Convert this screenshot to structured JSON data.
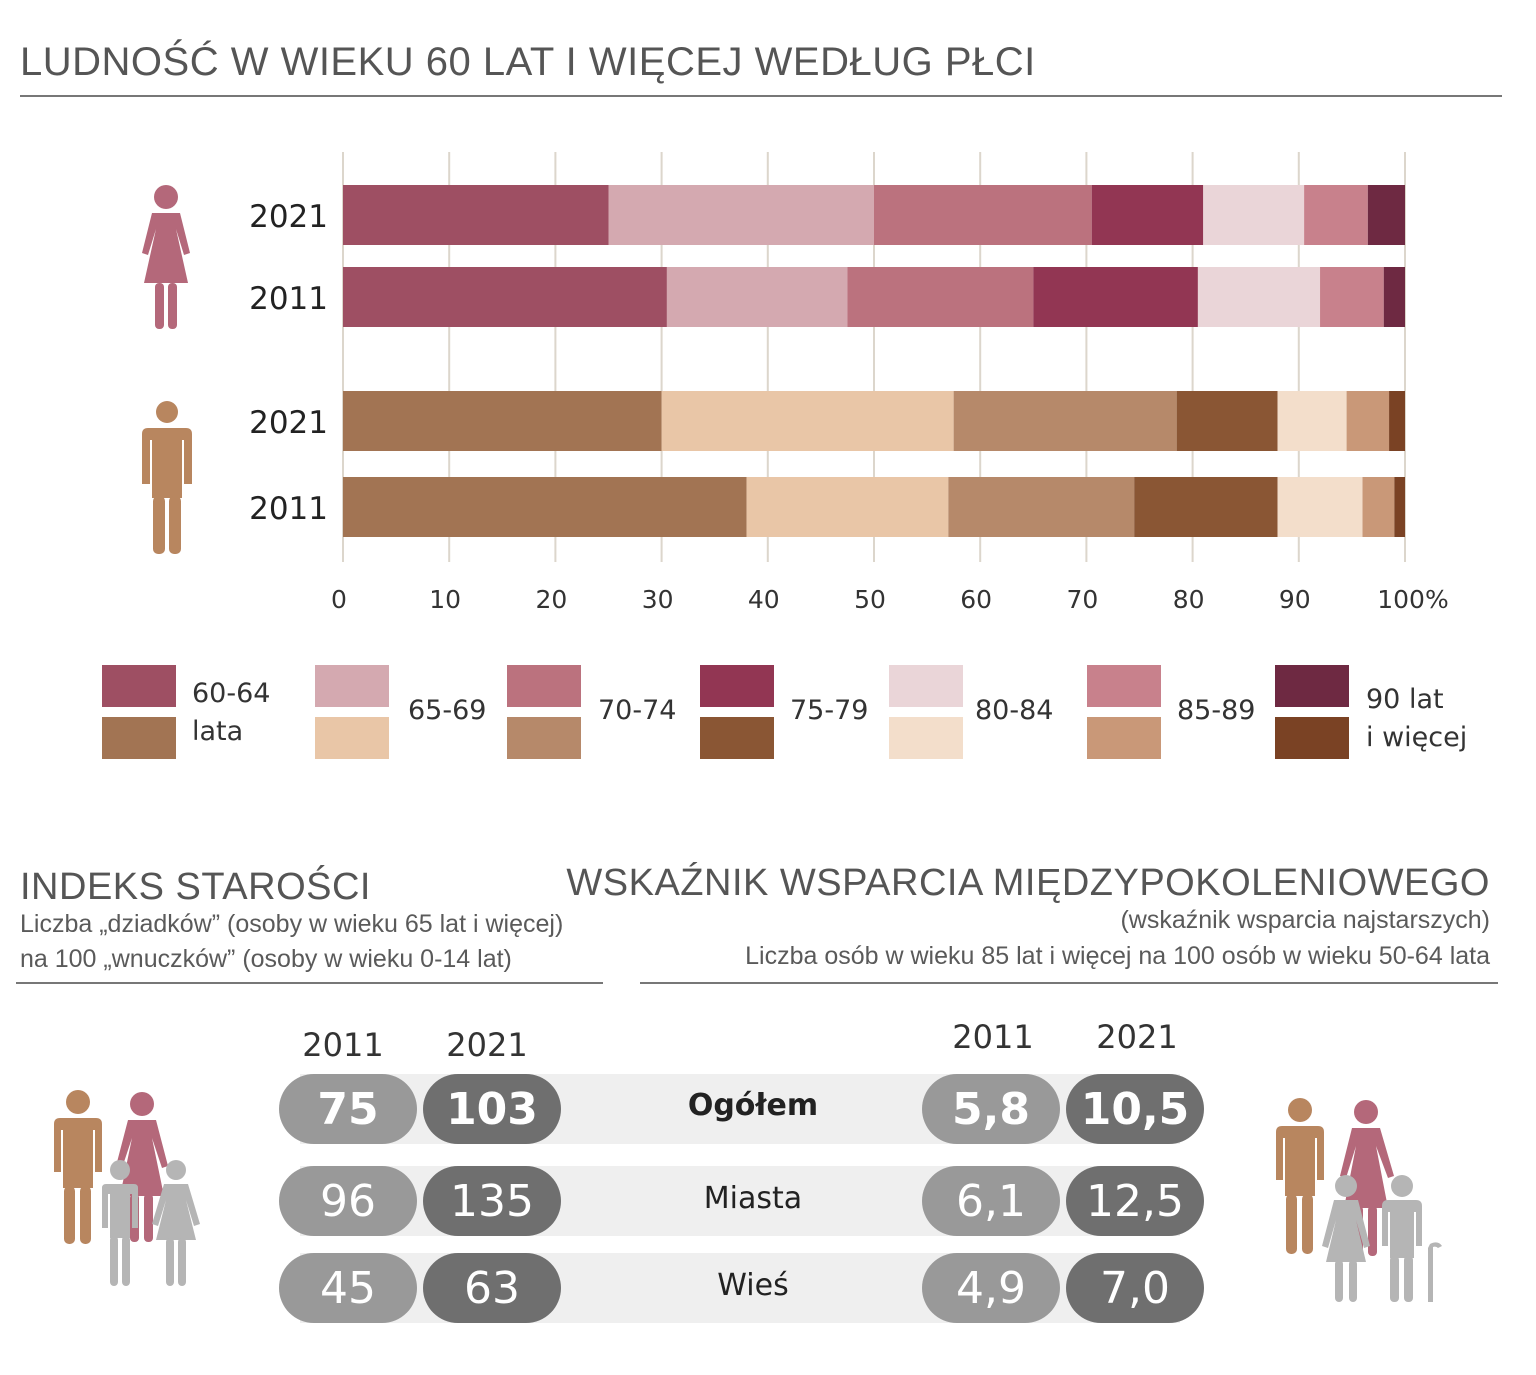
{
  "top_title": "LUDNOŚĆ W WIEKU 60 LAT I WIĘCEJ WEDŁUG PŁCI",
  "colors": {
    "female": [
      "#9e4f63",
      "#d4a9b0",
      "#bb727e",
      "#923653",
      "#ead5d8",
      "#c8818c",
      "#6e2942"
    ],
    "male": [
      "#a27453",
      "#e9c6a7",
      "#b6896a",
      "#8a5634",
      "#f3decb",
      "#c99878",
      "#7a4224"
    ],
    "female_icon": "#b4687a",
    "male_icon": "#b8865f",
    "child_icon": "#b5b5b5"
  },
  "chart_data": {
    "type": "bar",
    "orientation": "horizontal",
    "stacked": true,
    "title": "LUDNOŚĆ W WIEKU 60 LAT I WIĘCEJ WEDŁUG PŁCI",
    "xlim": [
      0,
      100
    ],
    "ticks": [
      "0",
      "10",
      "20",
      "30",
      "40",
      "50",
      "60",
      "70",
      "80",
      "90",
      "100%"
    ],
    "categories": [
      "2021",
      "2011",
      "2021",
      "2011"
    ],
    "groups": [
      "female",
      "female",
      "male",
      "male"
    ],
    "legend": [
      "60-64 lata",
      "65-69",
      "70-74",
      "75-79",
      "80-84",
      "85-89",
      "90 lat i więcej"
    ],
    "series": [
      {
        "name": "60-64 lata",
        "values": [
          25.0,
          30.5,
          30.0,
          38.0
        ]
      },
      {
        "name": "65-69",
        "values": [
          25.0,
          17.0,
          27.5,
          19.0
        ]
      },
      {
        "name": "70-74",
        "values": [
          20.5,
          17.5,
          21.0,
          17.5
        ]
      },
      {
        "name": "75-79",
        "values": [
          10.5,
          15.5,
          9.5,
          13.5
        ]
      },
      {
        "name": "80-84",
        "values": [
          9.5,
          11.5,
          6.5,
          8.0
        ]
      },
      {
        "name": "85-89",
        "values": [
          6.0,
          6.0,
          4.0,
          3.0
        ]
      },
      {
        "name": "90 lat i więcej",
        "values": [
          3.5,
          2.0,
          1.5,
          1.0
        ]
      }
    ],
    "grid": true
  },
  "legend": {
    "l1a": "60-64",
    "l1b": "lata",
    "l2": "65-69",
    "l3": "70-74",
    "l4": "75-79",
    "l5": "80-84",
    "l6": "85-89",
    "l7a": "90 lat",
    "l7b": "i więcej"
  },
  "left_section": {
    "title": "INDEKS STAROŚCI",
    "sub1": "Liczba „dziadków” (osoby w wieku 65 lat i więcej)",
    "sub2": "na 100 „wnuczków” (osoby w wieku 0-14 lat)",
    "year1": "2011",
    "year2": "2021"
  },
  "right_section": {
    "title": "WSKAŹNIK WSPARCIA MIĘDZYPOKOLENIOWEGO",
    "sub1": "(wskaźnik wsparcia najstarszych)",
    "sub2": "Liczba osób w wieku 85 lat i więcej na 100 osób w wieku 50-64 lata",
    "year1": "2011",
    "year2": "2021"
  },
  "rows": [
    {
      "label": "Ogółem",
      "idx2011": "75",
      "idx2021": "103",
      "ws2011": "5,8",
      "ws2021": "10,5"
    },
    {
      "label": "Miasta",
      "idx2011": "96",
      "idx2021": "135",
      "ws2011": "6,1",
      "ws2021": "12,5"
    },
    {
      "label": "Wieś",
      "idx2011": "45",
      "idx2021": "63",
      "ws2011": "4,9",
      "ws2021": "7,0"
    }
  ]
}
